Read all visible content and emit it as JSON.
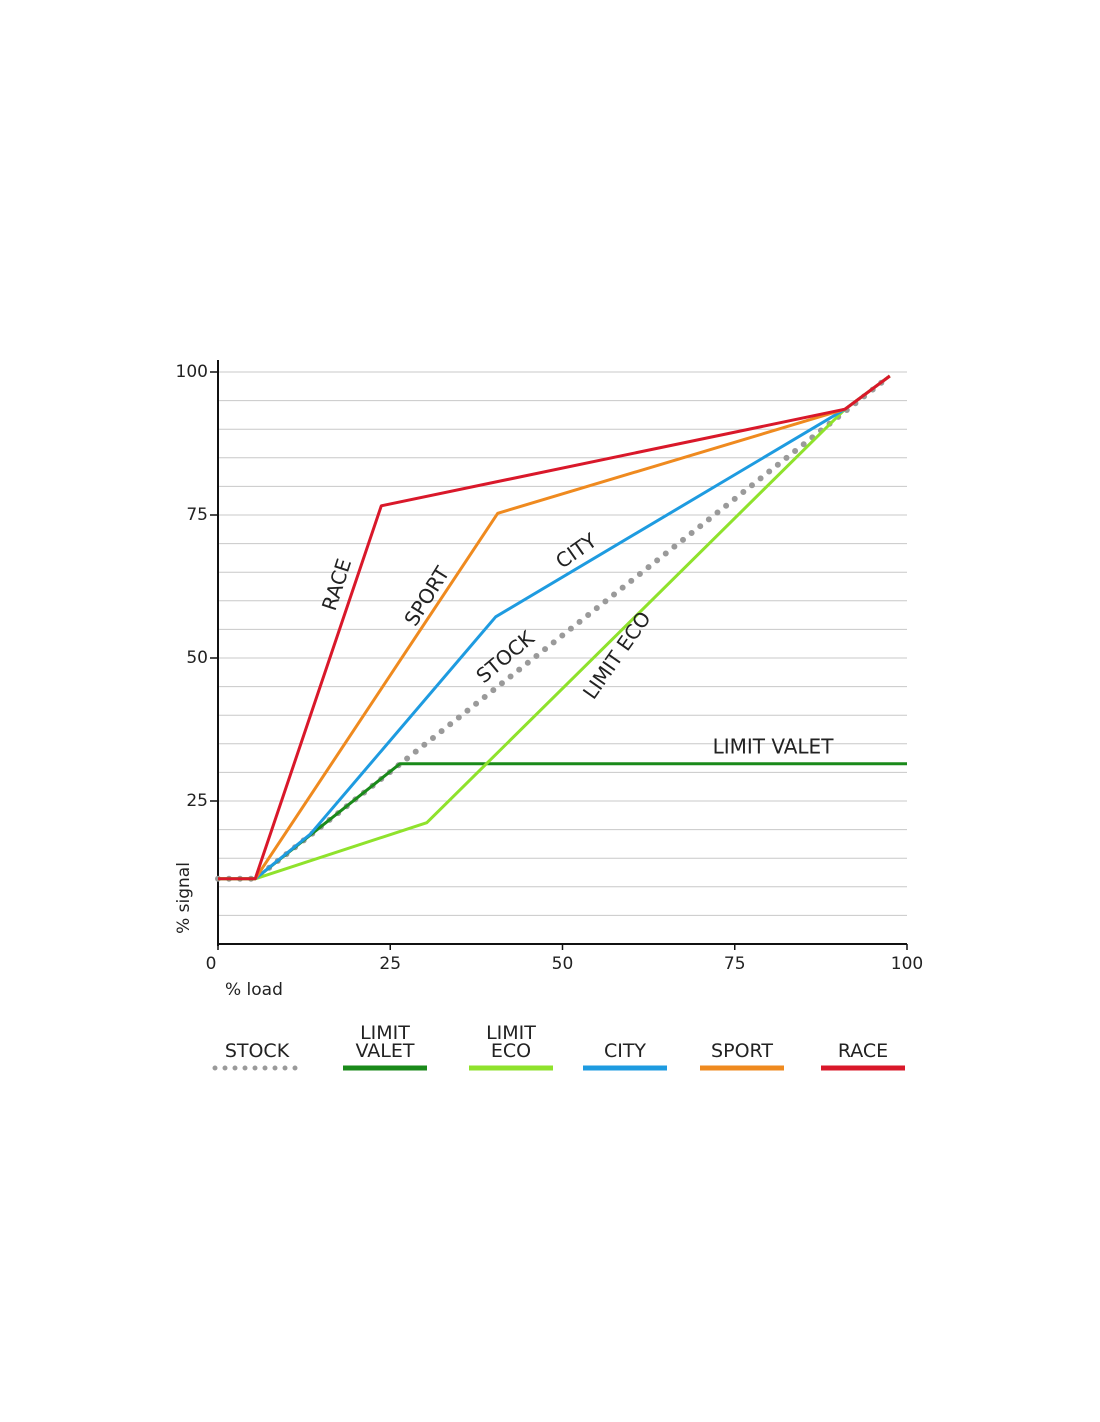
{
  "chart_data": {
    "type": "line",
    "x_label": "% load",
    "y_label": "% signal",
    "xlim": [
      0,
      100
    ],
    "ylim": [
      0,
      100
    ],
    "xticks": [
      0,
      25,
      50,
      75,
      100
    ],
    "yticks": [
      25,
      50,
      75,
      100
    ],
    "grid_y": [
      5,
      10,
      15,
      20,
      25,
      30,
      35,
      40,
      45,
      50,
      55,
      60,
      65,
      70,
      75,
      80,
      85,
      90,
      95,
      100
    ],
    "series": [
      {
        "name": "STOCK",
        "color": "#9a9a9a",
        "style": "dotted",
        "x": [
          0,
          5.4,
          97.5
        ],
        "values": [
          11.4,
          11.4,
          99.3
        ]
      },
      {
        "name": "LIMIT VALET",
        "color": "#1a8a1a",
        "style": "solid",
        "x": [
          0,
          5.4,
          26.4,
          100
        ],
        "values": [
          11.4,
          11.4,
          31.5,
          31.5
        ]
      },
      {
        "name": "LIMIT ECO",
        "color": "#8fe22c",
        "style": "solid",
        "x": [
          0,
          5.4,
          30.3,
          91,
          97.5
        ],
        "values": [
          11.4,
          11.4,
          21.2,
          93.5,
          99.3
        ]
      },
      {
        "name": "CITY",
        "color": "#1e9be0",
        "style": "solid",
        "x": [
          5.4,
          13.4,
          40.3,
          91,
          97.5
        ],
        "values": [
          11.4,
          19.2,
          57.2,
          93.5,
          99.3
        ]
      },
      {
        "name": "SPORT",
        "color": "#ef8a1f",
        "style": "solid",
        "x": [
          5.4,
          40.6,
          91,
          97.5
        ],
        "values": [
          11.4,
          75.3,
          93.5,
          99.3
        ]
      },
      {
        "name": "RACE",
        "color": "#d9182a",
        "style": "solid",
        "x": [
          0,
          5.4,
          23.7,
          91,
          97.5
        ],
        "values": [
          11.4,
          11.4,
          76.6,
          93.5,
          99.3
        ]
      }
    ],
    "annotations": [
      "RACE",
      "SPORT",
      "CITY",
      "STOCK",
      "LIMIT ECO",
      "LIMIT VALET"
    ]
  }
}
